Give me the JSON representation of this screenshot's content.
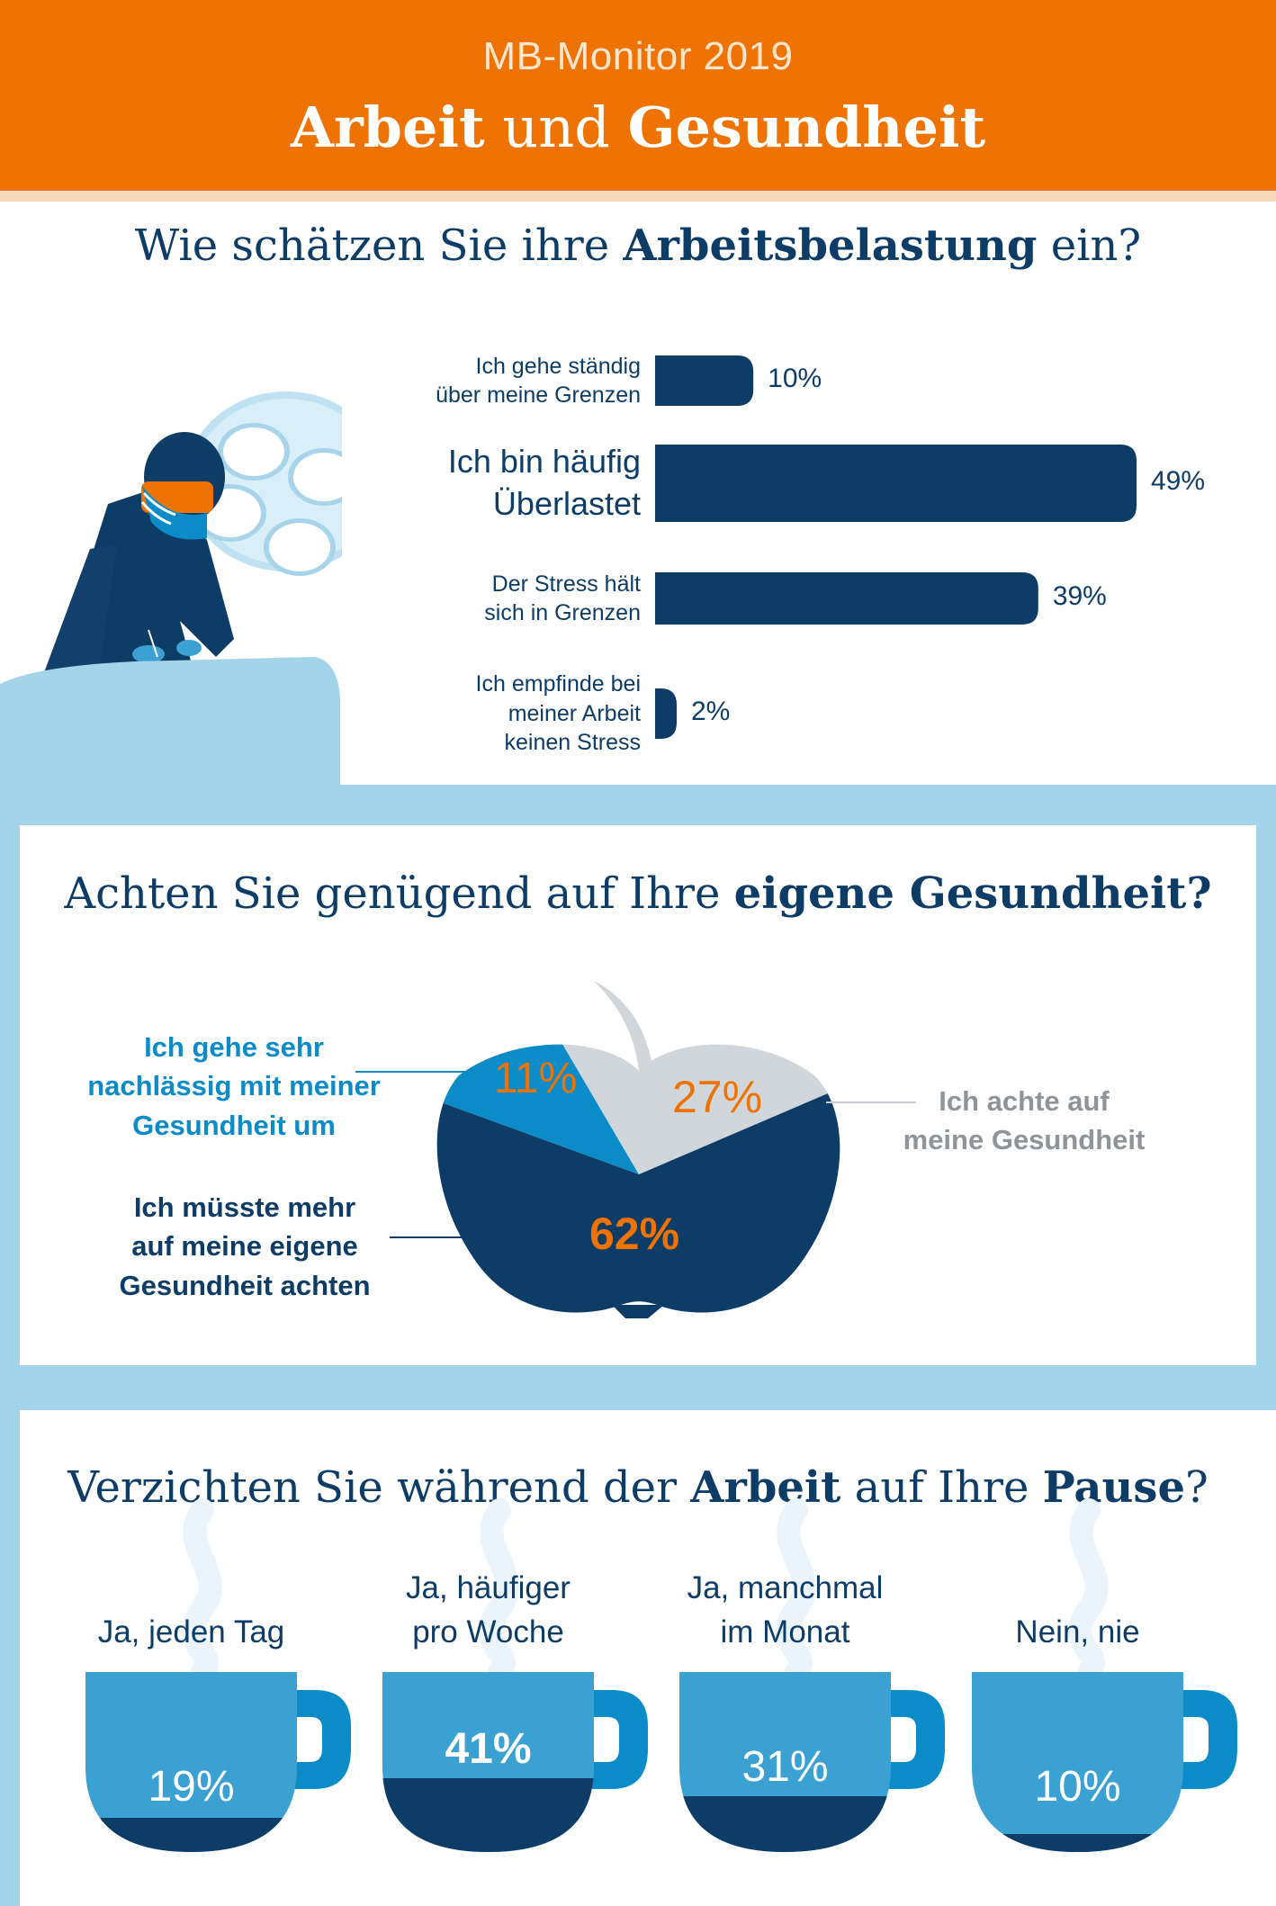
{
  "header": {
    "subtitle": "MB-Monitor 2019",
    "title_bold_1": "Arbeit",
    "title_mid": " und ",
    "title_bold_2": "Gesundheit"
  },
  "colors": {
    "orange": "#ee7302",
    "navy": "#0d3c66",
    "light_blue": "#a4d4e9",
    "mid_blue": "#3ba1d3",
    "bright_blue": "#0b8bc8",
    "grey": "#d1d6da"
  },
  "section1": {
    "question_pre": "Wie schätzen Sie ihre ",
    "question_bold": "Arbeitsbelastung",
    "question_post": " ein?"
  },
  "section2": {
    "question_pre": "Achten Sie genügend auf Ihre ",
    "question_bold": "eigene Gesundheit?"
  },
  "section3": {
    "question_pre": "Verzichten Sie während der ",
    "question_bold_1": "Arbeit",
    "question_mid": " auf Ihre ",
    "question_bold_2": "Pause",
    "question_post": "?"
  },
  "chart_data": [
    {
      "type": "bar",
      "orientation": "horizontal",
      "categories": [
        [
          "Ich gehe ständig",
          "über meine Grenzen"
        ],
        [
          "Ich bin häufig",
          "Überlastet"
        ],
        [
          "Der Stress hält",
          "sich in Grenzen"
        ],
        [
          "Ich empfinde bei",
          "meiner Arbeit",
          "keinen Stress"
        ]
      ],
      "values": [
        10,
        49,
        39,
        2
      ],
      "value_labels": [
        "10%",
        "49%",
        "39%",
        "2%"
      ],
      "unit": "%",
      "color": "#0d3c66"
    },
    {
      "type": "pie",
      "labels": [
        [
          "Ich gehe sehr",
          "nachlässig mit meiner",
          "Gesundheit um"
        ],
        [
          "Ich achte auf",
          "meine Gesundheit"
        ],
        [
          "Ich müsste mehr",
          "auf meine eigene",
          "Gesundheit achten"
        ]
      ],
      "values": [
        11,
        27,
        62
      ],
      "value_labels": [
        "11%",
        "27%",
        "62%"
      ],
      "colors": [
        "#0b8bc8",
        "#d1d6da",
        "#0d3c66"
      ],
      "shape": "apple"
    },
    {
      "type": "bar",
      "style": "cup-fill",
      "categories": [
        [
          "Ja, jeden Tag"
        ],
        [
          "Ja, häufiger",
          "pro Woche"
        ],
        [
          "Ja, manchmal",
          "im Monat"
        ],
        [
          "Nein, nie"
        ]
      ],
      "values": [
        19,
        41,
        31,
        10
      ],
      "value_labels": [
        "19%",
        "41%",
        "31%",
        "10%"
      ],
      "unit": "%",
      "colors": {
        "cup": "#3ba1d3",
        "fill": "#0d3c66",
        "handle": "#0b8bc8"
      }
    }
  ]
}
